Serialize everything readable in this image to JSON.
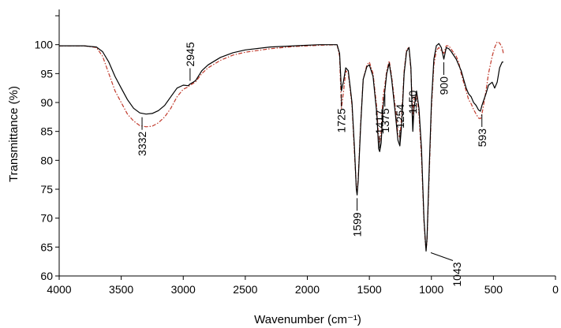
{
  "chart_data": {
    "type": "line",
    "title": "",
    "xlabel": "Wavenumber (cm⁻¹)",
    "ylabel": "Transmittance (%)",
    "xlim": [
      4000,
      0
    ],
    "ylim": [
      60,
      105
    ],
    "x_reversed": true,
    "x_ticks": [
      "4000",
      "3500",
      "3000",
      "2500",
      "2000",
      "1500",
      "1000",
      "500",
      "0"
    ],
    "y_ticks": [
      "60",
      "65",
      "70",
      "75",
      "80",
      "85",
      "90",
      "95",
      "100"
    ],
    "grid": false,
    "legend": "none",
    "series": [
      {
        "style": "solid",
        "color": "#000000",
        "points": [
          [
            4000,
            99.8
          ],
          [
            3800,
            99.8
          ],
          [
            3700,
            99.6
          ],
          [
            3650,
            98.8
          ],
          [
            3600,
            97.0
          ],
          [
            3550,
            94.5
          ],
          [
            3500,
            92.5
          ],
          [
            3450,
            90.5
          ],
          [
            3400,
            89.0
          ],
          [
            3350,
            88.2
          ],
          [
            3300,
            88.0
          ],
          [
            3250,
            88.1
          ],
          [
            3200,
            88.6
          ],
          [
            3150,
            89.5
          ],
          [
            3100,
            91.0
          ],
          [
            3050,
            92.5
          ],
          [
            3000,
            93.0
          ],
          [
            2960,
            92.9
          ],
          [
            2945,
            93.2
          ],
          [
            2920,
            93.5
          ],
          [
            2900,
            93.8
          ],
          [
            2850,
            95.5
          ],
          [
            2800,
            96.5
          ],
          [
            2700,
            97.8
          ],
          [
            2600,
            98.6
          ],
          [
            2500,
            99.1
          ],
          [
            2300,
            99.6
          ],
          [
            2100,
            99.8
          ],
          [
            1900,
            100.0
          ],
          [
            1760,
            100.0
          ],
          [
            1740,
            98.5
          ],
          [
            1725,
            92.0
          ],
          [
            1710,
            93.5
          ],
          [
            1690,
            96.0
          ],
          [
            1670,
            95.5
          ],
          [
            1640,
            90.0
          ],
          [
            1620,
            82.0
          ],
          [
            1605,
            75.0
          ],
          [
            1599,
            74.0
          ],
          [
            1590,
            76.5
          ],
          [
            1570,
            86.0
          ],
          [
            1550,
            94.0
          ],
          [
            1520,
            96.2
          ],
          [
            1500,
            96.5
          ],
          [
            1470,
            94.5
          ],
          [
            1440,
            88.0
          ],
          [
            1425,
            82.0
          ],
          [
            1417,
            81.5
          ],
          [
            1405,
            83.0
          ],
          [
            1390,
            89.0
          ],
          [
            1375,
            92.0
          ],
          [
            1360,
            95.0
          ],
          [
            1340,
            96.8
          ],
          [
            1320,
            94.0
          ],
          [
            1290,
            88.0
          ],
          [
            1270,
            83.5
          ],
          [
            1254,
            82.5
          ],
          [
            1240,
            86.0
          ],
          [
            1220,
            95.0
          ],
          [
            1200,
            98.8
          ],
          [
            1180,
            99.5
          ],
          [
            1165,
            96.0
          ],
          [
            1155,
            88.0
          ],
          [
            1150,
            85.0
          ],
          [
            1140,
            89.0
          ],
          [
            1120,
            92.0
          ],
          [
            1100,
            89.0
          ],
          [
            1080,
            82.0
          ],
          [
            1060,
            70.0
          ],
          [
            1050,
            66.5
          ],
          [
            1043,
            64.3
          ],
          [
            1035,
            66.5
          ],
          [
            1020,
            77.0
          ],
          [
            1000,
            90.0
          ],
          [
            980,
            97.5
          ],
          [
            960,
            99.8
          ],
          [
            940,
            100.2
          ],
          [
            920,
            99.5
          ],
          [
            900,
            97.5
          ],
          [
            880,
            99.5
          ],
          [
            860,
            99.3
          ],
          [
            840,
            98.8
          ],
          [
            800,
            97.5
          ],
          [
            780,
            96.5
          ],
          [
            760,
            95.5
          ],
          [
            740,
            94.0
          ],
          [
            720,
            92.5
          ],
          [
            700,
            91.5
          ],
          [
            680,
            91.0
          ],
          [
            660,
            90.0
          ],
          [
            640,
            89.5
          ],
          [
            620,
            88.7
          ],
          [
            605,
            88.5
          ],
          [
            593,
            89.5
          ],
          [
            580,
            90.3
          ],
          [
            560,
            91.5
          ],
          [
            540,
            93.0
          ],
          [
            510,
            93.5
          ],
          [
            490,
            92.5
          ],
          [
            470,
            93.5
          ],
          [
            450,
            96.0
          ],
          [
            430,
            97.0
          ],
          [
            420,
            97.0
          ]
        ]
      },
      {
        "style": "dashed",
        "color": "#c0392b",
        "points": [
          [
            4000,
            99.8
          ],
          [
            3800,
            99.8
          ],
          [
            3700,
            99.5
          ],
          [
            3650,
            98.0
          ],
          [
            3600,
            95.0
          ],
          [
            3550,
            92.0
          ],
          [
            3500,
            90.0
          ],
          [
            3450,
            88.0
          ],
          [
            3400,
            86.8
          ],
          [
            3350,
            86.0
          ],
          [
            3300,
            85.8
          ],
          [
            3250,
            85.9
          ],
          [
            3200,
            86.5
          ],
          [
            3150,
            87.5
          ],
          [
            3100,
            89.0
          ],
          [
            3050,
            91.0
          ],
          [
            3000,
            92.3
          ],
          [
            2960,
            92.7
          ],
          [
            2945,
            93.0
          ],
          [
            2920,
            93.3
          ],
          [
            2900,
            93.6
          ],
          [
            2850,
            95.0
          ],
          [
            2800,
            96.0
          ],
          [
            2700,
            97.3
          ],
          [
            2600,
            98.2
          ],
          [
            2500,
            98.7
          ],
          [
            2300,
            99.3
          ],
          [
            2100,
            99.7
          ],
          [
            1900,
            99.9
          ],
          [
            1760,
            100.0
          ],
          [
            1740,
            98.0
          ],
          [
            1725,
            89.0
          ],
          [
            1710,
            91.5
          ],
          [
            1690,
            95.5
          ],
          [
            1670,
            95.0
          ],
          [
            1640,
            89.5
          ],
          [
            1620,
            81.0
          ],
          [
            1605,
            75.5
          ],
          [
            1599,
            74.5
          ],
          [
            1590,
            77.0
          ],
          [
            1570,
            86.5
          ],
          [
            1550,
            94.0
          ],
          [
            1520,
            96.5
          ],
          [
            1500,
            97.0
          ],
          [
            1470,
            95.0
          ],
          [
            1440,
            89.0
          ],
          [
            1425,
            83.5
          ],
          [
            1417,
            83.0
          ],
          [
            1405,
            85.0
          ],
          [
            1390,
            91.0
          ],
          [
            1375,
            93.0
          ],
          [
            1360,
            95.5
          ],
          [
            1340,
            97.2
          ],
          [
            1320,
            94.5
          ],
          [
            1290,
            89.0
          ],
          [
            1270,
            84.5
          ],
          [
            1254,
            84.0
          ],
          [
            1240,
            87.5
          ],
          [
            1220,
            95.5
          ],
          [
            1200,
            99.2
          ],
          [
            1180,
            99.5
          ],
          [
            1165,
            95.5
          ],
          [
            1155,
            90.0
          ],
          [
            1150,
            88.0
          ],
          [
            1140,
            90.5
          ],
          [
            1120,
            91.5
          ],
          [
            1100,
            88.0
          ],
          [
            1080,
            80.5
          ],
          [
            1060,
            69.5
          ],
          [
            1050,
            66.0
          ],
          [
            1043,
            64.5
          ],
          [
            1035,
            66.0
          ],
          [
            1020,
            76.0
          ],
          [
            1000,
            89.0
          ],
          [
            980,
            96.5
          ],
          [
            960,
            99.0
          ],
          [
            940,
            99.5
          ],
          [
            920,
            99.0
          ],
          [
            900,
            98.5
          ],
          [
            880,
            99.8
          ],
          [
            860,
            99.8
          ],
          [
            840,
            99.2
          ],
          [
            800,
            98.0
          ],
          [
            780,
            97.0
          ],
          [
            760,
            95.0
          ],
          [
            740,
            93.5
          ],
          [
            720,
            92.0
          ],
          [
            700,
            90.5
          ],
          [
            680,
            89.8
          ],
          [
            660,
            88.8
          ],
          [
            640,
            88.0
          ],
          [
            620,
            87.3
          ],
          [
            605,
            87.2
          ],
          [
            593,
            88.0
          ],
          [
            580,
            89.5
          ],
          [
            560,
            92.0
          ],
          [
            540,
            95.0
          ],
          [
            510,
            98.0
          ],
          [
            490,
            99.5
          ],
          [
            470,
            100.5
          ],
          [
            450,
            100.3
          ],
          [
            430,
            99.5
          ],
          [
            420,
            98.5
          ]
        ]
      }
    ],
    "annotations": [
      {
        "label": "3332",
        "x": 3332,
        "y": 88.0,
        "dir": "down"
      },
      {
        "label": "2945",
        "x": 2945,
        "y": 93.2,
        "dir": "up"
      },
      {
        "label": "1725",
        "x": 1725,
        "y": 92.0,
        "dir": "down"
      },
      {
        "label": "1599",
        "x": 1599,
        "y": 74.0,
        "dir": "down"
      },
      {
        "label": "1417",
        "x": 1417,
        "y": 81.5,
        "dir": "up"
      },
      {
        "label": "1375",
        "x": 1375,
        "y": 92.0,
        "dir": "down"
      },
      {
        "label": "1254",
        "x": 1254,
        "y": 82.5,
        "dir": "up"
      },
      {
        "label": "1150",
        "x": 1150,
        "y": 85.0,
        "dir": "up"
      },
      {
        "label": "1043",
        "x": 1043,
        "y": 64.3,
        "dir": "diag"
      },
      {
        "label": "900",
        "x": 900,
        "y": 97.5,
        "dir": "down"
      },
      {
        "label": "593",
        "x": 593,
        "y": 88.5,
        "dir": "down"
      }
    ]
  }
}
